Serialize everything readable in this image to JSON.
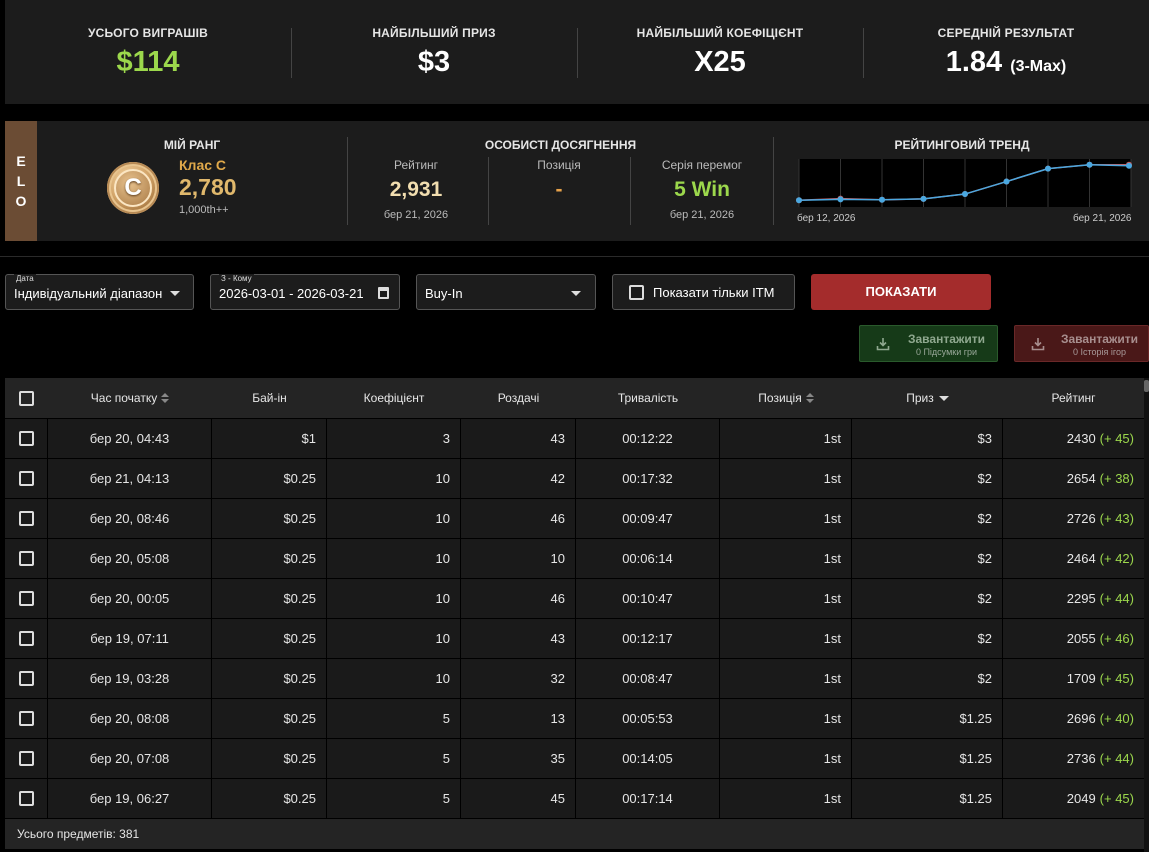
{
  "stats": [
    {
      "label": "УСЬОГО ВИГРАШІВ",
      "value": "$114",
      "suffix": ""
    },
    {
      "label": "НАЙБІЛЬШИЙ ПРИЗ",
      "value": "$3",
      "suffix": ""
    },
    {
      "label": "НАЙБІЛЬШИЙ КОЕФІЦІЄНТ",
      "value": "X25",
      "suffix": ""
    },
    {
      "label": "СЕРЕДНІЙ РЕЗУЛЬТАТ",
      "value": "1.84",
      "suffix": "(3-Max)"
    }
  ],
  "elo": {
    "tab": [
      "E",
      "L",
      "O"
    ],
    "rank_title": "МІЙ РАНГ",
    "badge_letter": "C",
    "rank_class": "Клас C",
    "rank_value": "2,780",
    "rank_sub": "1,000th++",
    "achievements_title": "ОСОБИСТІ ДОСЯГНЕННЯ",
    "achievements": [
      {
        "label": "Рейтинг",
        "value": "2,931",
        "date": "бер 21, 2026",
        "color": "#f2deb0"
      },
      {
        "label": "Позиція",
        "value": "-",
        "date": "",
        "color": "#e8a24a"
      },
      {
        "label": "Серія перемог",
        "value": "5 Win",
        "date": "бер 21, 2026",
        "color": "#9cd84c"
      }
    ],
    "trend_title": "РЕЙТИНГОВИЙ ТРЕНД",
    "trend_start": "бер 12, 2026",
    "trend_end": "бер 21, 2026",
    "trend_series": [
      {
        "color": "#4aa8e0",
        "values": [
          2040,
          2060,
          2050,
          2070,
          2170,
          2430,
          2700,
          2780,
          2760
        ]
      },
      {
        "color": "#c95a5a",
        "values": [
          2040,
          2075,
          2050,
          2070,
          2170,
          2430,
          2700,
          2780,
          2780
        ]
      }
    ],
    "trend_ylim": [
      1900,
      2900
    ]
  },
  "filters": {
    "date_label": "Дата",
    "date_value": "Індивідуальний діапазон",
    "range_label": "З - Кому",
    "range_value": "2026-03-01 - 2026-03-21",
    "buyin_value": "Buy-In",
    "itm_label": "Показати тільки ITM",
    "show_label": "ПОКАЗАТИ"
  },
  "downloads": [
    {
      "title": "Завантажити",
      "sub": "0 Підсумки гри"
    },
    {
      "title": "Завантажити",
      "sub": "0 Історія ігор"
    }
  ],
  "table": {
    "headers": [
      "Час початку",
      "Бай-ін",
      "Коефіцієнт",
      "Роздачі",
      "Тривалість",
      "Позиція",
      "Приз",
      "Рейтинг"
    ],
    "rows": [
      {
        "start": "бер 20, 04:43",
        "buyin": "$1",
        "mult": "3",
        "hands": "43",
        "duration": "00:12:22",
        "pos": "1st",
        "prize": "$3",
        "rating": "2430",
        "delta": "(+ 45)"
      },
      {
        "start": "бер 21, 04:13",
        "buyin": "$0.25",
        "mult": "10",
        "hands": "42",
        "duration": "00:17:32",
        "pos": "1st",
        "prize": "$2",
        "rating": "2654",
        "delta": "(+ 38)"
      },
      {
        "start": "бер 20, 08:46",
        "buyin": "$0.25",
        "mult": "10",
        "hands": "46",
        "duration": "00:09:47",
        "pos": "1st",
        "prize": "$2",
        "rating": "2726",
        "delta": "(+ 43)"
      },
      {
        "start": "бер 20, 05:08",
        "buyin": "$0.25",
        "mult": "10",
        "hands": "10",
        "duration": "00:06:14",
        "pos": "1st",
        "prize": "$2",
        "rating": "2464",
        "delta": "(+ 42)"
      },
      {
        "start": "бер 20, 00:05",
        "buyin": "$0.25",
        "mult": "10",
        "hands": "46",
        "duration": "00:10:47",
        "pos": "1st",
        "prize": "$2",
        "rating": "2295",
        "delta": "(+ 44)"
      },
      {
        "start": "бер 19, 07:11",
        "buyin": "$0.25",
        "mult": "10",
        "hands": "43",
        "duration": "00:12:17",
        "pos": "1st",
        "prize": "$2",
        "rating": "2055",
        "delta": "(+ 46)"
      },
      {
        "start": "бер 19, 03:28",
        "buyin": "$0.25",
        "mult": "10",
        "hands": "32",
        "duration": "00:08:47",
        "pos": "1st",
        "prize": "$2",
        "rating": "1709",
        "delta": "(+ 45)"
      },
      {
        "start": "бер 20, 08:08",
        "buyin": "$0.25",
        "mult": "5",
        "hands": "13",
        "duration": "00:05:53",
        "pos": "1st",
        "prize": "$1.25",
        "rating": "2696",
        "delta": "(+ 40)"
      },
      {
        "start": "бер 20, 07:08",
        "buyin": "$0.25",
        "mult": "5",
        "hands": "35",
        "duration": "00:14:05",
        "pos": "1st",
        "prize": "$1.25",
        "rating": "2736",
        "delta": "(+ 44)"
      },
      {
        "start": "бер 19, 06:27",
        "buyin": "$0.25",
        "mult": "5",
        "hands": "45",
        "duration": "00:17:14",
        "pos": "1st",
        "prize": "$1.25",
        "rating": "2049",
        "delta": "(+ 45)"
      }
    ],
    "footer": "Усього предметів: 381"
  },
  "colors": {
    "accent_green": "#9cd84c",
    "accent_red": "#a42c2c",
    "elo_tab": "#6b4c34"
  }
}
